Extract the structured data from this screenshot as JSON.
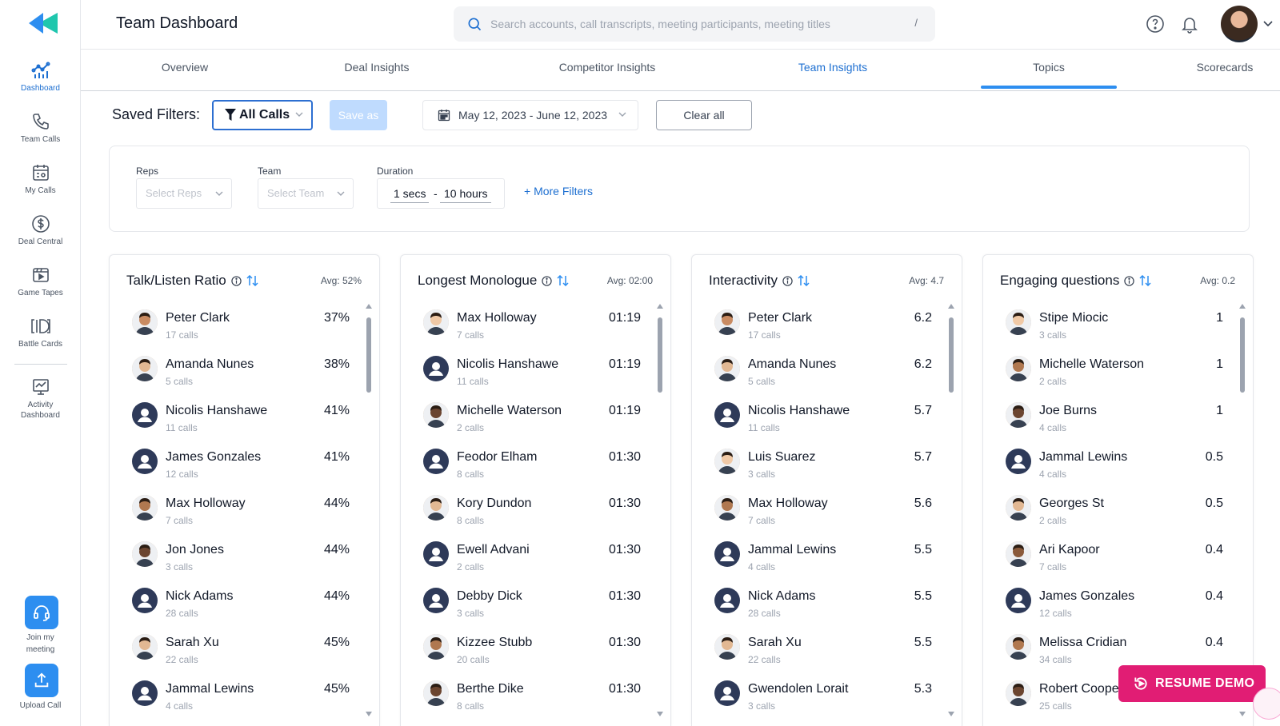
{
  "app": {
    "title": "Team Dashboard"
  },
  "search": {
    "placeholder": "Search accounts, call transcripts, meeting participants, meeting titles",
    "shortcut": "/"
  },
  "header_icons": [
    "help-icon",
    "bell-icon",
    "user-avatar"
  ],
  "sidebar": {
    "items": [
      {
        "label": "Dashboard",
        "icon": "dashboard-icon",
        "active": true
      },
      {
        "label": "Team Calls",
        "icon": "phone-icon"
      },
      {
        "label": "My Calls",
        "icon": "my-calls-icon"
      },
      {
        "label": "Deal Central",
        "icon": "dollar-icon"
      },
      {
        "label": "Game Tapes",
        "icon": "game-tapes-icon"
      },
      {
        "label": "Battle Cards",
        "icon": "battle-cards-icon"
      },
      {
        "label": "Activity",
        "label2": "Dashboard",
        "icon": "activity-icon"
      }
    ],
    "join_meeting": {
      "label1": "Join my",
      "label2": "meeting"
    },
    "upload_call": {
      "label": "Upload Call"
    }
  },
  "tabs": [
    {
      "label": "Overview"
    },
    {
      "label": "Deal Insights"
    },
    {
      "label": "Competitor Insights"
    },
    {
      "label": "Team Insights",
      "active": true
    },
    {
      "label": "Topics"
    },
    {
      "label": "Scorecards"
    }
  ],
  "saved_filters": {
    "label": "Saved Filters:",
    "selected": "All Calls",
    "save_as": "Save as",
    "date_range": "May 12, 2023 - June 12, 2023",
    "clear_all": "Clear all"
  },
  "filters": {
    "reps": {
      "label": "Reps",
      "placeholder": "Select Reps"
    },
    "team": {
      "label": "Team",
      "placeholder": "Select Team"
    },
    "duration": {
      "label": "Duration",
      "min": "1 secs",
      "separator": "-",
      "max": "10 hours"
    },
    "more": "+ More Filters"
  },
  "cards": [
    {
      "title": "Talk/Listen Ratio",
      "avg": "Avg: 52%",
      "rows": [
        {
          "name": "Peter Clark",
          "calls": "17 calls",
          "value": "37%",
          "avatar": "photo"
        },
        {
          "name": "Amanda Nunes",
          "calls": "5 calls",
          "value": "38%",
          "avatar": "photo"
        },
        {
          "name": "Nicolis Hanshawe",
          "calls": "11 calls",
          "value": "41%",
          "avatar": "default"
        },
        {
          "name": "James Gonzales",
          "calls": "12 calls",
          "value": "41%",
          "avatar": "default"
        },
        {
          "name": "Max Holloway",
          "calls": "7 calls",
          "value": "44%",
          "avatar": "photo"
        },
        {
          "name": "Jon Jones",
          "calls": "3 calls",
          "value": "44%",
          "avatar": "photo"
        },
        {
          "name": "Nick Adams",
          "calls": "28 calls",
          "value": "44%",
          "avatar": "default"
        },
        {
          "name": "Sarah Xu",
          "calls": "22 calls",
          "value": "45%",
          "avatar": "photo"
        },
        {
          "name": "Jammal Lewins",
          "calls": "4 calls",
          "value": "45%",
          "avatar": "default"
        }
      ]
    },
    {
      "title": "Longest Monologue",
      "avg": "Avg: 02:00",
      "rows": [
        {
          "name": "Max Holloway",
          "calls": "7 calls",
          "value": "01:19",
          "avatar": "photo"
        },
        {
          "name": "Nicolis Hanshawe",
          "calls": "11 calls",
          "value": "01:19",
          "avatar": "default"
        },
        {
          "name": "Michelle Waterson",
          "calls": "2 calls",
          "value": "01:19",
          "avatar": "photo"
        },
        {
          "name": "Feodor Elham",
          "calls": "8 calls",
          "value": "01:30",
          "avatar": "default"
        },
        {
          "name": "Kory Dundon",
          "calls": "8 calls",
          "value": "01:30",
          "avatar": "photo"
        },
        {
          "name": "Ewell Advani",
          "calls": "2 calls",
          "value": "01:30",
          "avatar": "default"
        },
        {
          "name": "Debby Dick",
          "calls": "3 calls",
          "value": "01:30",
          "avatar": "default"
        },
        {
          "name": "Kizzee Stubb",
          "calls": "20 calls",
          "value": "01:30",
          "avatar": "photo"
        },
        {
          "name": "Berthe Dike",
          "calls": "8 calls",
          "value": "01:30",
          "avatar": "photo"
        }
      ]
    },
    {
      "title": "Interactivity",
      "avg": "Avg: 4.7",
      "rows": [
        {
          "name": "Peter Clark",
          "calls": "17 calls",
          "value": "6.2",
          "avatar": "photo"
        },
        {
          "name": "Amanda Nunes",
          "calls": "5 calls",
          "value": "6.2",
          "avatar": "photo"
        },
        {
          "name": "Nicolis Hanshawe",
          "calls": "11 calls",
          "value": "5.7",
          "avatar": "default"
        },
        {
          "name": "Luis Suarez",
          "calls": "3 calls",
          "value": "5.7",
          "avatar": "photo"
        },
        {
          "name": "Max Holloway",
          "calls": "7 calls",
          "value": "5.6",
          "avatar": "photo"
        },
        {
          "name": "Jammal Lewins",
          "calls": "4 calls",
          "value": "5.5",
          "avatar": "default"
        },
        {
          "name": "Nick Adams",
          "calls": "28 calls",
          "value": "5.5",
          "avatar": "default"
        },
        {
          "name": "Sarah Xu",
          "calls": "22 calls",
          "value": "5.5",
          "avatar": "photo"
        },
        {
          "name": "Gwendolen Lorait",
          "calls": "3 calls",
          "value": "5.3",
          "avatar": "default"
        }
      ]
    },
    {
      "title": "Engaging questions",
      "avg": "Avg: 0.2",
      "rows": [
        {
          "name": "Stipe Miocic",
          "calls": "3 calls",
          "value": "1",
          "avatar": "photo"
        },
        {
          "name": "Michelle Waterson",
          "calls": "2 calls",
          "value": "1",
          "avatar": "photo"
        },
        {
          "name": "Joe Burns",
          "calls": "4 calls",
          "value": "1",
          "avatar": "photo"
        },
        {
          "name": "Jammal Lewins",
          "calls": "4 calls",
          "value": "0.5",
          "avatar": "default"
        },
        {
          "name": "Georges St",
          "calls": "2 calls",
          "value": "0.5",
          "avatar": "photo"
        },
        {
          "name": "Ari Kapoor",
          "calls": "7 calls",
          "value": "0.4",
          "avatar": "photo"
        },
        {
          "name": "James Gonzales",
          "calls": "12 calls",
          "value": "0.4",
          "avatar": "default"
        },
        {
          "name": "Melissa Cridian",
          "calls": "34 calls",
          "value": "0.4",
          "avatar": "photo"
        },
        {
          "name": "Robert Cooper",
          "calls": "25 calls",
          "value": "",
          "avatar": "photo"
        }
      ]
    }
  ],
  "resume_demo": {
    "label": "RESUME DEMO"
  },
  "colors": {
    "accent": "#2d8ef0",
    "active_tab": "#1d6fd1",
    "resume": "#e11d74",
    "avatar_default": "#2e3a59"
  }
}
